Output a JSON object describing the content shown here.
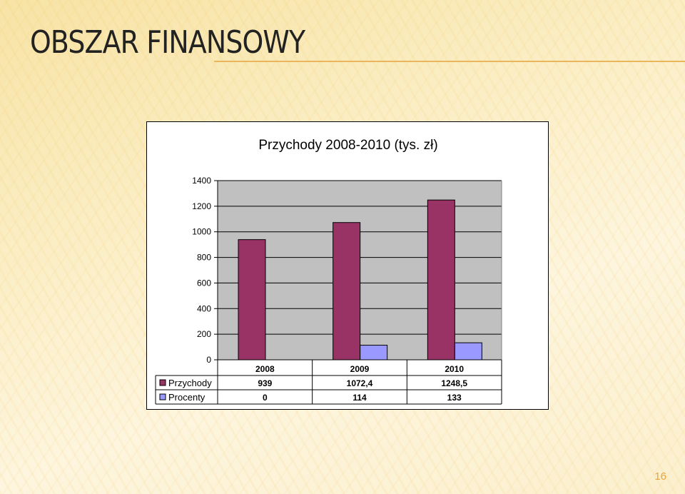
{
  "slide": {
    "title": "OBSZAR FINANSOWY",
    "page_number": "16"
  },
  "colors": {
    "przychody": "#993366",
    "procenty": "#9999ff",
    "plot_bg": "#c0c0c0",
    "accent": "#e9b65d"
  },
  "chart_data": {
    "type": "bar",
    "title": "Przychody 2008-2010 (tys. zł)",
    "categories": [
      "2008",
      "2009",
      "2010"
    ],
    "series": [
      {
        "name": "Przychody",
        "values": [
          939,
          1072.4,
          1248.5
        ],
        "labels": [
          "939",
          "1072,4",
          "1248,5"
        ]
      },
      {
        "name": "Procenty",
        "values": [
          0,
          114,
          133
        ],
        "labels": [
          "0",
          "114",
          "133"
        ]
      }
    ],
    "yticks": [
      "0",
      "200",
      "400",
      "600",
      "800",
      "1000",
      "1200",
      "1400"
    ],
    "ylim": [
      0,
      1400
    ],
    "grid": true,
    "legend": "data-table-left"
  }
}
